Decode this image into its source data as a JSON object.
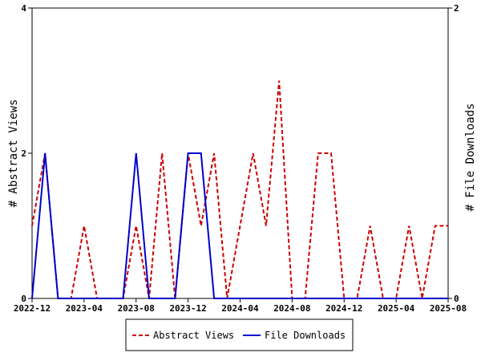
{
  "chart_data": {
    "type": "line",
    "title": "",
    "ylabel_left": "# Abstract Views",
    "ylabel_right": "# File Downloads",
    "xlim": [
      "2022-12",
      "2025-08"
    ],
    "ylim_left": [
      0,
      4
    ],
    "ylim_right": [
      0,
      2
    ],
    "left_ticks": [
      0,
      2,
      4
    ],
    "right_ticks": [
      0,
      2
    ],
    "x_ticks": [
      "2022-12",
      "2023-04",
      "2023-08",
      "2023-12",
      "2024-04",
      "2024-08",
      "2024-12",
      "2025-04",
      "2025-08"
    ],
    "grid": false,
    "legend_position": "bottom",
    "x": [
      "2022-12",
      "2023-01",
      "2023-02",
      "2023-03",
      "2023-04",
      "2023-05",
      "2023-06",
      "2023-07",
      "2023-08",
      "2023-09",
      "2023-10",
      "2023-11",
      "2023-12",
      "2024-01",
      "2024-02",
      "2024-03",
      "2024-04",
      "2024-05",
      "2024-06",
      "2024-07",
      "2024-08",
      "2024-09",
      "2024-10",
      "2024-11",
      "2024-12",
      "2025-01",
      "2025-02",
      "2025-03",
      "2025-04",
      "2025-05",
      "2025-06",
      "2025-07",
      "2025-08"
    ],
    "series": [
      {
        "name": "Abstract Views",
        "axis": "left",
        "color": "#cc0000",
        "style": "dashed",
        "values": [
          1,
          2,
          0,
          0,
          1,
          0,
          0,
          0,
          1,
          0,
          2,
          0,
          2,
          1,
          2,
          0,
          1,
          2,
          1,
          3,
          0,
          0,
          2,
          2,
          0,
          0,
          1,
          0,
          0,
          1,
          0,
          1,
          1
        ]
      },
      {
        "name": "File Downloads",
        "axis": "right",
        "color": "#0000cc",
        "style": "solid",
        "values": [
          0,
          1,
          0,
          0,
          0,
          0,
          0,
          0,
          1,
          0,
          0,
          0,
          1,
          1,
          0,
          0,
          0,
          0,
          0,
          0,
          0,
          0,
          0,
          0,
          0,
          0,
          0,
          0,
          0,
          0,
          0,
          0,
          0
        ]
      }
    ]
  }
}
